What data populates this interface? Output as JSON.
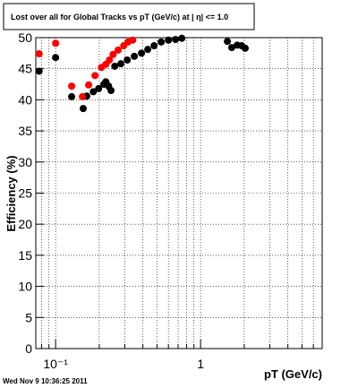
{
  "chart_data": {
    "type": "scatter",
    "title": "Lost over all for Global Tracks vs pT (GeV/c) at |  η| <= 1.0",
    "x_label": "pT (GeV/c)",
    "y_label": "Efficiency (%)",
    "timestamp": "Wed Nov  9 10:36:25 2011",
    "log_x": true,
    "grid": true,
    "xlim": [
      0.073,
      6.9
    ],
    "ylim": [
      0,
      50
    ],
    "xticks": [
      {
        "value": 0.1,
        "label": "10⁻¹"
      },
      1
    ],
    "xminor": [
      0.08,
      0.09,
      0.2,
      0.3,
      0.4,
      0.5,
      0.6,
      0.7,
      0.8,
      0.9,
      2,
      3,
      4,
      5,
      6
    ],
    "yticks": [
      0,
      5,
      10,
      15,
      20,
      25,
      30,
      35,
      40,
      45,
      50
    ],
    "series": [
      {
        "color": "#000000",
        "x": [
          0.077,
          0.1,
          0.129,
          0.155,
          0.164,
          0.182,
          0.198,
          0.215,
          0.222,
          0.232,
          0.241,
          0.256,
          0.282,
          0.312,
          0.349,
          0.391,
          0.432,
          0.478,
          0.535,
          0.6,
          0.672,
          0.742,
          1.53,
          1.64,
          1.79,
          1.92,
          2.03
        ],
        "values": [
          44.6,
          46.8,
          40.5,
          38.6,
          40.6,
          41.3,
          41.8,
          42.5,
          42.9,
          42.2,
          41.5,
          45.4,
          45.8,
          46.4,
          47.0,
          47.5,
          48.1,
          48.7,
          49.3,
          49.6,
          49.7,
          49.9,
          49.4,
          48.4,
          48.8,
          48.7,
          48.3
        ]
      },
      {
        "color": "#ff0000",
        "x": [
          0.077,
          0.1,
          0.129,
          0.153,
          0.169,
          0.187,
          0.207,
          0.222,
          0.235,
          0.249,
          0.27,
          0.295,
          0.316,
          0.34
        ],
        "values": [
          47.4,
          49.1,
          42.2,
          40.5,
          42.4,
          43.9,
          45.2,
          45.7,
          46.4,
          47.3,
          48.0,
          48.7,
          49.3,
          49.6
        ]
      }
    ]
  }
}
